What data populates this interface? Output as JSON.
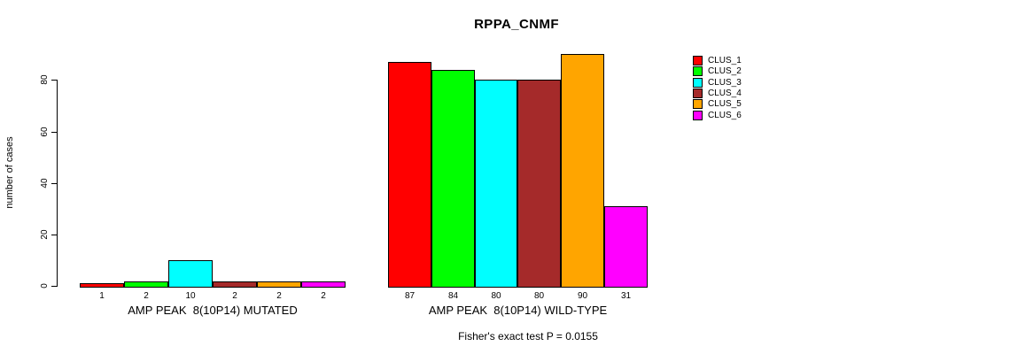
{
  "chart_data": {
    "type": "bar",
    "title": "RPPA_CNMF",
    "ylabel": "number of cases",
    "ylim": [
      0,
      90
    ],
    "yticks": [
      0,
      20,
      40,
      60,
      80
    ],
    "grid": false,
    "legend_position": "right",
    "categories": [
      "AMP PEAK  8(10P14) MUTATED",
      "AMP PEAK  8(10P14) WILD-TYPE"
    ],
    "series": [
      {
        "name": "CLUS_1",
        "color": "#FF0000",
        "values": [
          1,
          87
        ]
      },
      {
        "name": "CLUS_2",
        "color": "#00FF00",
        "values": [
          2,
          84
        ]
      },
      {
        "name": "CLUS_3",
        "color": "#00FFFF",
        "values": [
          10,
          80
        ]
      },
      {
        "name": "CLUS_4",
        "color": "#A52A2A",
        "values": [
          2,
          80
        ]
      },
      {
        "name": "CLUS_5",
        "color": "#FFA500",
        "values": [
          2,
          90
        ]
      },
      {
        "name": "CLUS_6",
        "color": "#FF00FF",
        "values": [
          2,
          31
        ]
      }
    ],
    "annotation": "Fisher's exact test P = 0.0155"
  }
}
